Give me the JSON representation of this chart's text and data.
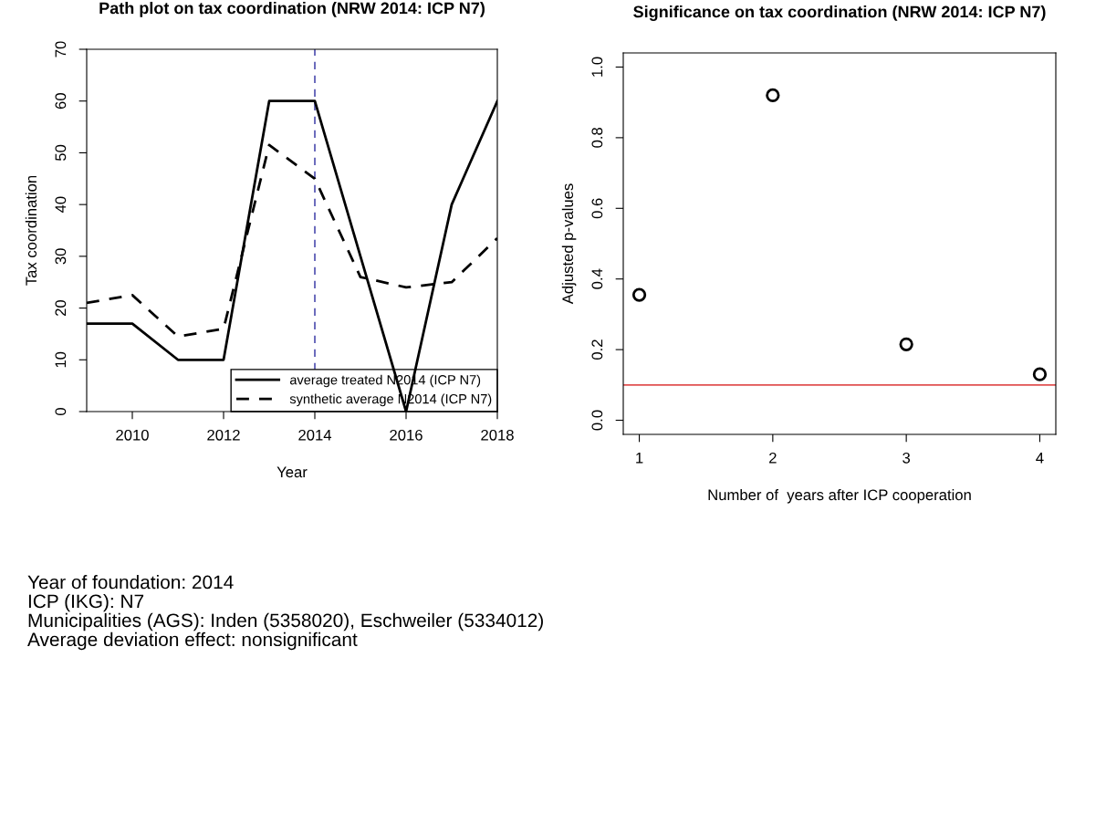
{
  "chart_data": [
    {
      "type": "line",
      "title": "Path plot on tax coordination (NRW 2014: ICP N7)",
      "xlabel": "Year",
      "ylabel": "Tax coordination",
      "x": [
        2009,
        2010,
        2011,
        2012,
        2013,
        2014,
        2015,
        2016,
        2017,
        2018
      ],
      "series": [
        {
          "name": "average treated N2014 (ICP N7)",
          "color": "#000000",
          "line_style": "solid",
          "values": [
            17,
            17,
            10,
            10,
            60,
            60,
            30,
            0,
            40,
            60
          ]
        },
        {
          "name": "synthetic average N2014 (ICP N7)",
          "color": "#000000",
          "line_style": "dashed",
          "values": [
            21,
            22.5,
            14.5,
            16,
            51.5,
            45,
            26,
            24,
            25,
            33.5
          ]
        }
      ],
      "xlim": [
        2009,
        2018
      ],
      "xticks": [
        2010,
        2012,
        2014,
        2016,
        2018
      ],
      "ylim": [
        0,
        70
      ],
      "yticks": [
        0,
        10,
        20,
        30,
        40,
        50,
        60,
        70
      ],
      "ref_lines": [
        {
          "axis": "x",
          "value": 2014,
          "color": "#5050b0",
          "line_style": "dashed"
        }
      ],
      "legend": "bottom right",
      "grid": false,
      "marker": "none",
      "annotations": [
        "Year of foundation: 2014",
        "ICP (IKG): N7",
        "Municipalities (AGS): Inden (5358020), Eschweiler (5334012)",
        "Average deviation effect: nonsignificant"
      ]
    },
    {
      "type": "scatter",
      "title": "Significance on tax coordination (NRW 2014: ICP N7)",
      "xlabel": "Number of  years after ICP cooperation",
      "ylabel": "Adjusted p-values",
      "x": [
        1,
        2,
        3,
        4
      ],
      "series": [
        {
          "color": "#000000",
          "values": [
            0.355,
            0.92,
            0.215,
            0.13
          ]
        }
      ],
      "xlim": [
        0.88,
        4.12
      ],
      "xticks": [
        1,
        2,
        3,
        4
      ],
      "ylim": [
        -0.04,
        1.04
      ],
      "yticks": [
        {
          "value": 0,
          "label": "0.0"
        },
        0.2,
        0.4,
        0.6,
        0.8,
        {
          "value": 1,
          "label": "1.0"
        }
      ],
      "ref_lines": [
        {
          "axis": "y",
          "value": 0.1,
          "color": "#e05050",
          "line_style": "solid"
        }
      ],
      "grid": false,
      "marker": "circle"
    }
  ]
}
